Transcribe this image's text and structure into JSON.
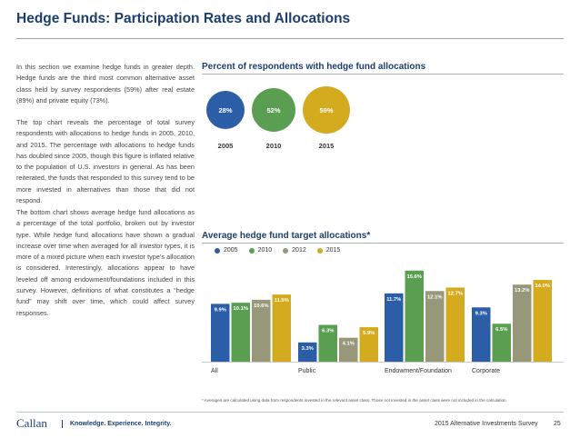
{
  "title": "Hedge Funds: Participation Rates and Allocations",
  "intro_paragraphs": [
    "In this section we examine hedge funds in greater depth. Hedge funds are the third most common alternative asset class held by survey respondents (59%) after real estate (89%) and private equity (73%).",
    "The top chart reveals the percentage of total survey respondents with allocations to hedge funds in 2005, 2010, and 2015. The percentage with allocations to hedge funds has doubled since 2005, though this figure is inflated relative to the population of U.S. investors in general. As has been reiterated, the funds that responded to this survey tend to be more invested in alternatives than those that did not respond.",
    "The bottom chart shows average hedge fund allocations as a percentage of the total portfolio, broken out by investor type. While hedge fund allocations have shown a gradual increase over time when averaged for all investor types, it is more of a mixed picture when each investor type’s allocation is considered. Interestingly, allocations appear to have leveled off among endowment/foundations included in this survey. However, definitions of what constitutes a “hedge fund” may shift over time, which could affect survey responses."
  ],
  "top_chart": {
    "title": "Percent of respondents with hedge fund allocations",
    "circles": [
      {
        "year": "2005",
        "label": "28%",
        "value": 28,
        "color": "#2b5ea7"
      },
      {
        "year": "2010",
        "label": "52%",
        "value": 52,
        "color": "#5a9e52"
      },
      {
        "year": "2015",
        "label": "59%",
        "value": 59,
        "color": "#d4aa1e"
      }
    ]
  },
  "bottom_chart": {
    "title": "Average hedge fund target allocations*"
  },
  "chart_data": {
    "type": "bar",
    "categories": [
      "All",
      "Public",
      "Endowment/Foundation",
      "Corporate"
    ],
    "series": [
      {
        "name": "2005",
        "color": "#2b5ea7",
        "values": [
          9.9,
          3.3,
          11.7,
          9.3
        ],
        "labels": [
          "9.9%",
          "3.3%",
          "11.7%",
          "9.3%"
        ]
      },
      {
        "name": "2010",
        "color": "#5a9e52",
        "values": [
          10.1,
          6.3,
          15.6,
          6.5
        ],
        "labels": [
          "10.1%",
          "6.3%",
          "15.6%",
          "6.5%"
        ]
      },
      {
        "name": "2012",
        "color": "#97977a",
        "values": [
          10.6,
          4.1,
          12.1,
          13.2
        ],
        "labels": [
          "10.6%",
          "4.1%",
          "12.1%",
          "13.2%"
        ]
      },
      {
        "name": "2015",
        "color": "#d4aa1e",
        "values": [
          11.5,
          5.9,
          12.7,
          14.0
        ],
        "labels": [
          "11.5%",
          "5.9%",
          "12.7%",
          "14.0%"
        ]
      }
    ],
    "ylim": [
      0,
      16.5
    ],
    "grid": false,
    "legend": "top-left"
  },
  "footnote": "* Averages are calculated using data from respondents invested in the relevant asset class. Those not invested in the asset class were not included in the calculation.",
  "footer": {
    "logo": "Callan",
    "tagline": "Knowledge. Experience. Integrity.",
    "survey": "2015 Alternative Investments Survey",
    "page": "25"
  }
}
